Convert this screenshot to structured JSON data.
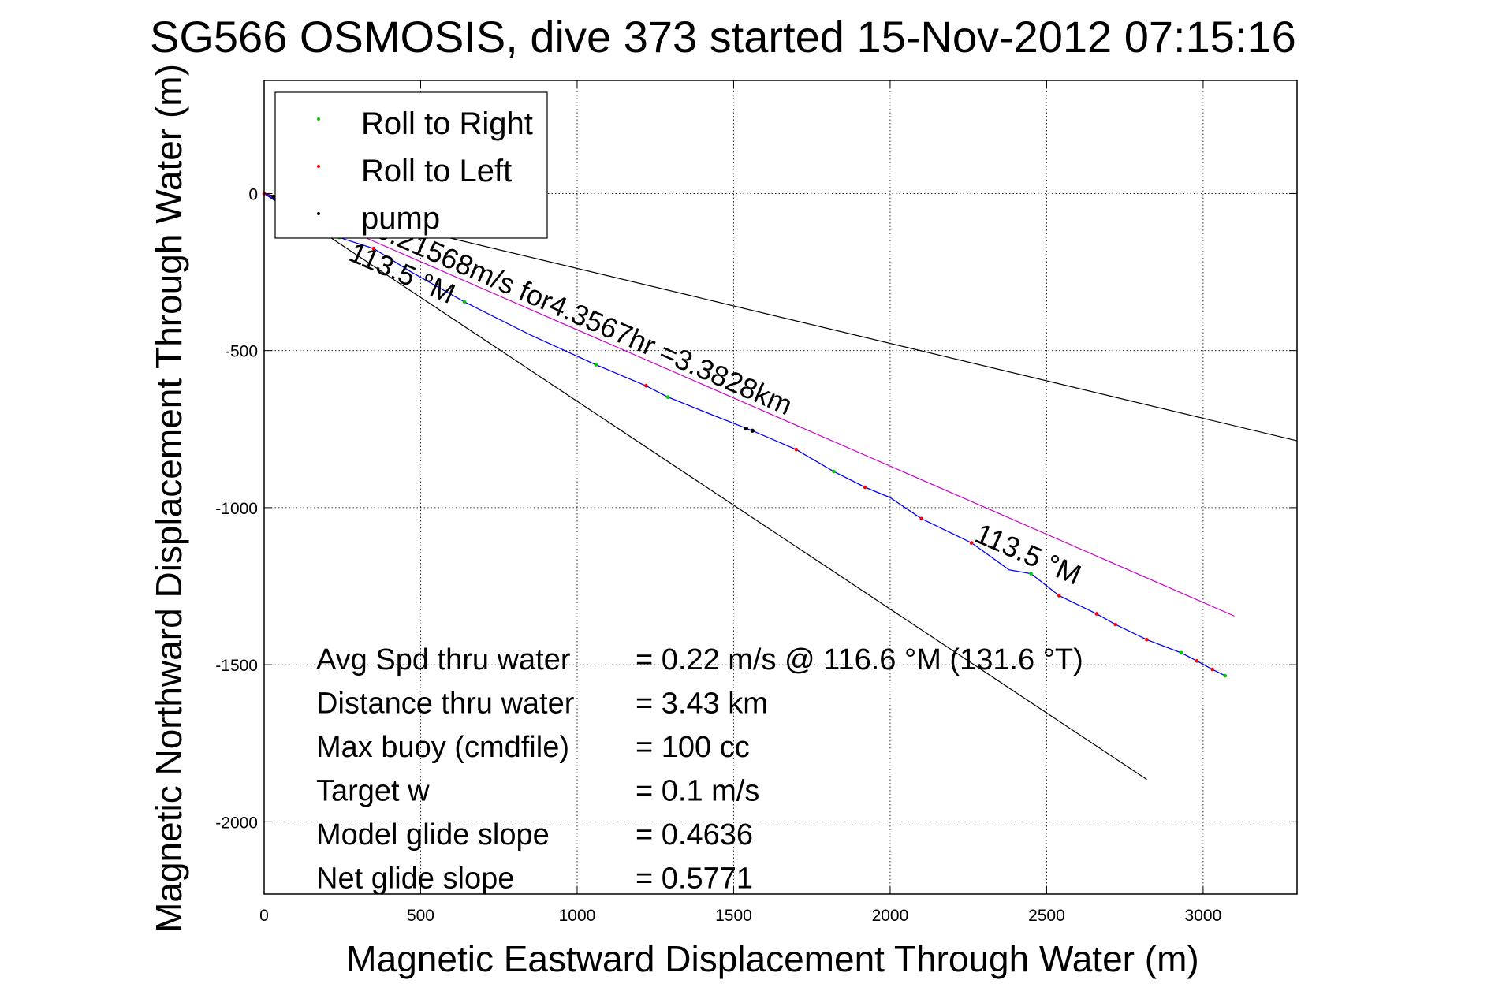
{
  "chart_data": {
    "type": "line",
    "title": "SG566 OSMOSIS, dive 373 started 15-Nov-2012 07:15:16",
    "xlabel": "Magnetic Eastward Displacement Through Water (m)",
    "ylabel": "Magnetic Northward Displacement Through Water (m)",
    "xlim": [
      0,
      3300
    ],
    "ylim": [
      -2230,
      360
    ],
    "xticks": [
      "0",
      "500",
      "1000",
      "1500",
      "2000",
      "2500",
      "3000"
    ],
    "yticks": [
      "0",
      "-500",
      "-1000",
      "-1500",
      "-2000"
    ],
    "xtick_values": [
      0,
      500,
      1000,
      1500,
      2000,
      2500,
      3000
    ],
    "ytick_values": [
      0,
      -500,
      -1000,
      -1500,
      -2000
    ],
    "grid": true,
    "legend_position": "top-left",
    "legend": [
      {
        "label": "Roll to Right",
        "color": "#00cc00"
      },
      {
        "label": "Roll to Left",
        "color": "#ff0000"
      },
      {
        "label": "pump",
        "color": "#000000"
      }
    ],
    "track": {
      "color": "#0000ff",
      "x": [
        0,
        100,
        240,
        350,
        470,
        640,
        850,
        1060,
        1220,
        1290,
        1420,
        1560,
        1700,
        1820,
        1920,
        2000,
        2100,
        2260,
        2380,
        2450,
        2540,
        2660,
        2720,
        2820,
        2930,
        2980,
        3030,
        3070
      ],
      "y": [
        0,
        -60,
        -140,
        -175,
        -250,
        -345,
        -450,
        -545,
        -612,
        -648,
        -700,
        -755,
        -815,
        -885,
        -935,
        -968,
        -1035,
        -1112,
        -1198,
        -1210,
        -1280,
        -1338,
        -1372,
        -1420,
        -1462,
        -1488,
        -1515,
        -1535
      ]
    },
    "roll_right": {
      "x": [
        240,
        640,
        1060,
        1290,
        1820,
        2450,
        2930,
        3070
      ],
      "y": [
        -140,
        -345,
        -545,
        -648,
        -885,
        -1210,
        -1462,
        -1535
      ]
    },
    "roll_left": {
      "x": [
        0,
        350,
        1220,
        1700,
        1920,
        2100,
        2260,
        2540,
        2660,
        2720,
        2820,
        2980,
        3030
      ],
      "y": [
        0,
        -175,
        -612,
        -815,
        -935,
        -1035,
        -1112,
        -1280,
        -1338,
        -1372,
        -1420,
        -1488,
        -1515
      ]
    },
    "pump": {
      "x": [
        30,
        1540,
        1560
      ],
      "y": [
        -10,
        -748,
        -755
      ]
    },
    "reference_lines": [
      {
        "color": "#000000",
        "x": [
          0,
          3300
        ],
        "y": [
          0,
          -787
        ]
      },
      {
        "color": "#000000",
        "x": [
          0,
          2820
        ],
        "y": [
          0,
          -1865
        ]
      },
      {
        "color": "#cc00cc",
        "x": [
          0,
          3100
        ],
        "y": [
          0,
          -1345
        ]
      }
    ],
    "annotations": [
      {
        "text": "0.21568m/s for4.3567hr =3.3828km",
        "x": 350,
        "y": -135,
        "angle": 23.5
      },
      {
        "text": "113.5 °M",
        "x": 265,
        "y": -210,
        "angle": 23.5
      },
      {
        "text": "113.5 °M",
        "x": 2265,
        "y": -1105,
        "angle": 23.5
      }
    ],
    "stats": [
      {
        "label": "Avg Spd thru water",
        "value": "=  0.22 m/s @ 116.6 °M (131.6 °T)"
      },
      {
        "label": "Distance thru water",
        "value": "=  3.43 km"
      },
      {
        "label": "Max buoy (cmdfile)",
        "value": "= 100 cc"
      },
      {
        "label": "Target w",
        "value": "= 0.1 m/s"
      },
      {
        "label": "Model glide slope",
        "value": "= 0.4636"
      },
      {
        "label": "Net glide slope",
        "value": "= 0.5771"
      }
    ]
  }
}
